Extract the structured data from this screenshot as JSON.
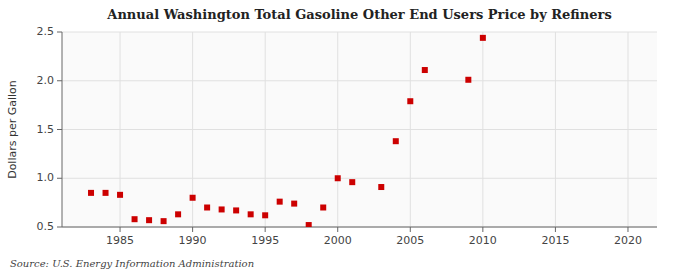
{
  "chart_data": {
    "type": "scatter",
    "title": "Annual Washington Total Gasoline Other End Users Price by Refiners",
    "ylabel": "Dollars per Gallon",
    "annotations": [
      "Source: U.S. Energy Information Administration"
    ],
    "x": [
      1983,
      1984,
      1985,
      1986,
      1987,
      1988,
      1989,
      1990,
      1991,
      1992,
      1993,
      1994,
      1995,
      1996,
      1997,
      1998,
      1999,
      2000,
      2001,
      2003,
      2004,
      2005,
      2006,
      2009,
      2010
    ],
    "values": [
      0.85,
      0.85,
      0.83,
      0.58,
      0.57,
      0.56,
      0.63,
      0.8,
      0.7,
      0.68,
      0.67,
      0.63,
      0.62,
      0.76,
      0.74,
      0.52,
      0.7,
      1.0,
      0.96,
      0.91,
      1.38,
      1.79,
      2.11,
      2.01,
      2.44
    ],
    "color": "#cc0000",
    "marker": "square",
    "xlim": [
      1981,
      2022
    ],
    "ylim": [
      0.5,
      2.5
    ],
    "xticks": [
      1985,
      1990,
      1995,
      2000,
      2005,
      2010,
      2015,
      2020
    ],
    "yticks": [
      0.5,
      {
        "value": 1.0,
        "label": "1.0"
      },
      1.5,
      {
        "value": 2.0,
        "label": "2.0"
      },
      2.5
    ],
    "grid": true
  }
}
